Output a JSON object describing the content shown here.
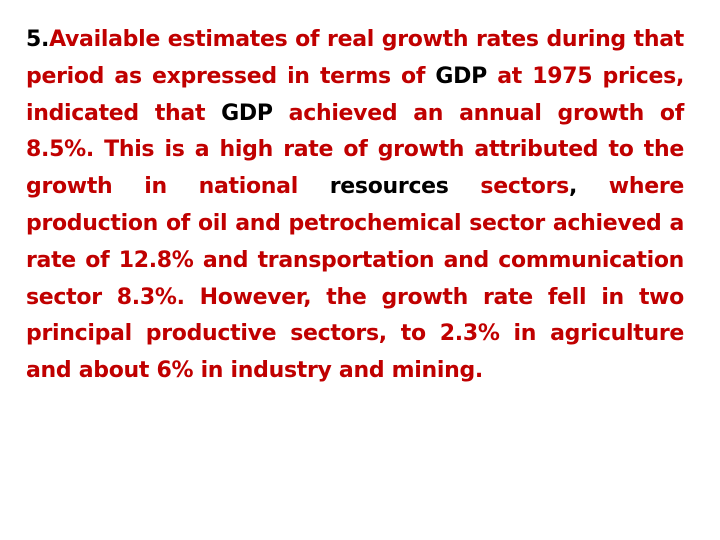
{
  "colors": {
    "text_red": "#c00000",
    "text_black": "#000000",
    "background": "#ffffff"
  },
  "paragraph": {
    "number": "5.",
    "text_1": "Available estimates of real growth rates during that period as expressed in terms of ",
    "gdp_1": "GDP",
    "text_2": " at 1975 prices, indicated that ",
    "gdp_2": "GDP",
    "text_3": " achieved an annual growth of 8.5%. This is a high rate of growth attributed to the growth in national ",
    "resources": "resources",
    "text_4": " sectors",
    "comma": ",",
    "text_5": " where production of oil and petrochemical sector achieved a rate of 12.8% and transportation and communication sector 8.3%. However, the growth rate fell in two principal productive sectors, to 2.3% in agriculture and about 6% in industry and mining."
  }
}
